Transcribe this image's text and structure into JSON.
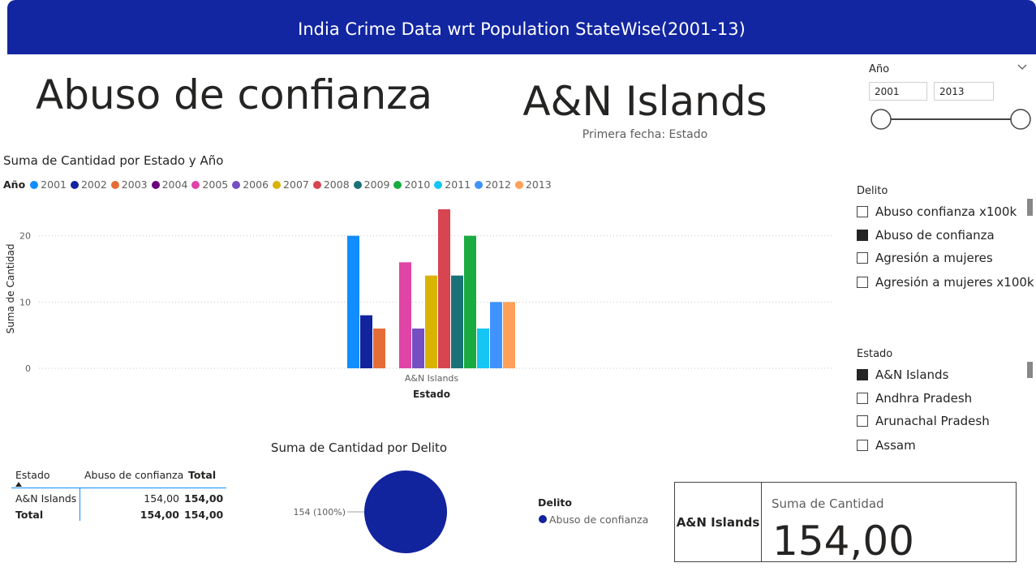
{
  "header": {
    "title": "India Crime Data wrt Population StateWise(2001-13)"
  },
  "main_title": "Abuso de confianza",
  "state_card": {
    "title": "A&N Islands",
    "subtitle": "Primera fecha: Estado"
  },
  "year_slicer": {
    "title": "Año",
    "from": "2001",
    "to": "2013"
  },
  "delito_slicer": {
    "title": "Delito",
    "items": [
      {
        "label": "Abuso confianza x100k",
        "checked": false
      },
      {
        "label": "Abuso de confianza",
        "checked": true
      },
      {
        "label": "Agresión a mujeres",
        "checked": false
      },
      {
        "label": "Agresión a mujeres x100k",
        "checked": false
      }
    ]
  },
  "estado_slicer": {
    "title": "Estado",
    "items": [
      {
        "label": "A&N Islands",
        "checked": true
      },
      {
        "label": "Andhra Pradesh",
        "checked": false
      },
      {
        "label": "Arunachal Pradesh",
        "checked": false
      },
      {
        "label": "Assam",
        "checked": false
      }
    ]
  },
  "bar_chart": {
    "title": "Suma de Cantidad por Estado y Año",
    "legend_title": "Año"
  },
  "pie_chart": {
    "title": "Suma de Cantidad por Delito",
    "legend_title": "Delito"
  },
  "table": {
    "headers": [
      "Estado",
      "Abuso de confianza",
      "Total"
    ],
    "rows": [
      {
        "estado": "A&N Islands",
        "abuso": "154,00",
        "total": "154,00"
      }
    ],
    "total_row": {
      "label": "Total",
      "abuso": "154,00",
      "total": "154,00"
    }
  },
  "kpi_card": {
    "state": "A&N Islands",
    "label": "Suma de Cantidad",
    "value": "154,00"
  },
  "chart_data": [
    {
      "type": "bar",
      "title": "Suma de Cantidad por Estado y Año",
      "xlabel": "Estado",
      "ylabel": "Suma de Cantidad",
      "categories": [
        "A&N Islands"
      ],
      "ylim": [
        0,
        24
      ],
      "yticks": [
        0,
        10,
        20
      ],
      "grid": true,
      "legend_title": "Año",
      "legend_position": "top-left",
      "series": [
        {
          "name": "2001",
          "values": [
            20
          ],
          "color": "#118dff"
        },
        {
          "name": "2002",
          "values": [
            8
          ],
          "color": "#12239e"
        },
        {
          "name": "2003",
          "values": [
            6
          ],
          "color": "#e66c37"
        },
        {
          "name": "2004",
          "values": [
            0
          ],
          "color": "#6b007b"
        },
        {
          "name": "2005",
          "values": [
            16
          ],
          "color": "#e044a7"
        },
        {
          "name": "2006",
          "values": [
            6
          ],
          "color": "#744ec2"
        },
        {
          "name": "2007",
          "values": [
            14
          ],
          "color": "#d9b300"
        },
        {
          "name": "2008",
          "values": [
            24
          ],
          "color": "#d64550"
        },
        {
          "name": "2009",
          "values": [
            14
          ],
          "color": "#197278"
        },
        {
          "name": "2010",
          "values": [
            20
          ],
          "color": "#1aab40"
        },
        {
          "name": "2011",
          "values": [
            6
          ],
          "color": "#15c6f4"
        },
        {
          "name": "2012",
          "values": [
            10
          ],
          "color": "#4092ff"
        },
        {
          "name": "2013",
          "values": [
            10
          ],
          "color": "#ffa058"
        }
      ]
    },
    {
      "type": "pie",
      "title": "Suma de Cantidad por Delito",
      "legend_title": "Delito",
      "legend_position": "right",
      "slices": [
        {
          "label": "Abuso de confianza",
          "value": 154,
          "data_label": "154 (100%)",
          "color": "#12239e"
        }
      ]
    }
  ]
}
